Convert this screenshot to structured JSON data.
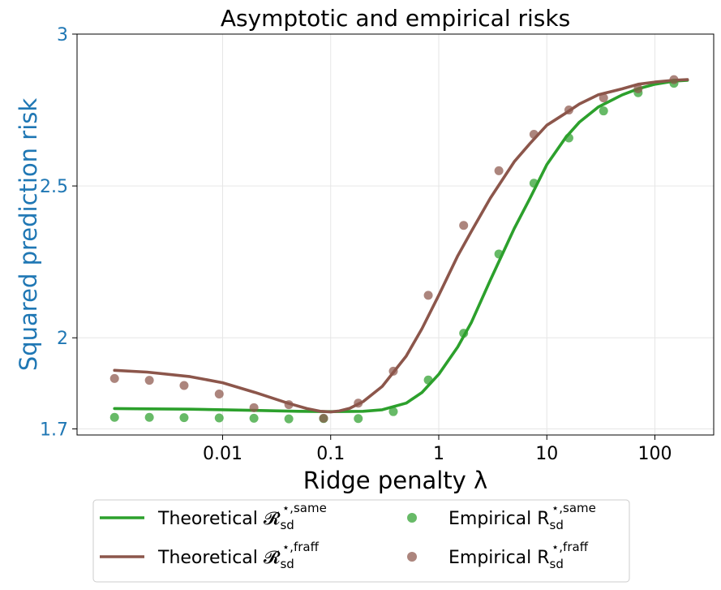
{
  "chart_data": {
    "type": "line",
    "title": "Asymptotic and empirical risks",
    "xlabel": "Ridge penalty λ",
    "ylabel": "Squared prediction risk",
    "xscale": "log",
    "xlim": [
      0.00045,
      350
    ],
    "ylim": [
      1.68,
      3.0
    ],
    "xticks": [
      0.01,
      0.1,
      1,
      10,
      100
    ],
    "xtick_labels": [
      "0.01",
      "0.1",
      "1",
      "10",
      "100"
    ],
    "yticks": [
      1.7,
      2,
      2.5,
      3
    ],
    "ytick_labels": [
      "1.7",
      "2",
      "2.5",
      "3"
    ],
    "grid": true,
    "legend_position": "below",
    "series": [
      {
        "name": "theo_same",
        "kind": "line",
        "label_prefix": "Theoretical ",
        "label_glyph": "𝓡",
        "label_sub": "sd",
        "label_sup": "⋆,same",
        "color": "#2ca02c",
        "x": [
          0.001,
          0.002,
          0.005,
          0.01,
          0.02,
          0.05,
          0.1,
          0.2,
          0.3,
          0.5,
          0.7,
          1,
          1.5,
          2,
          3,
          5,
          7,
          10,
          15,
          20,
          30,
          50,
          70,
          100,
          150,
          200
        ],
        "y": [
          1.767,
          1.766,
          1.765,
          1.763,
          1.761,
          1.758,
          1.757,
          1.758,
          1.763,
          1.785,
          1.82,
          1.88,
          1.97,
          2.05,
          2.19,
          2.36,
          2.46,
          2.57,
          2.66,
          2.71,
          2.76,
          2.8,
          2.82,
          2.835,
          2.845,
          2.848
        ]
      },
      {
        "name": "theo_fraff",
        "kind": "line",
        "label_prefix": "Theoretical ",
        "label_glyph": "𝓡",
        "label_sub": "sd",
        "label_sup": "⋆,fraff",
        "color": "#8c564b",
        "x": [
          0.001,
          0.002,
          0.005,
          0.01,
          0.02,
          0.04,
          0.06,
          0.08,
          0.1,
          0.12,
          0.15,
          0.2,
          0.3,
          0.5,
          0.7,
          1,
          1.5,
          2,
          3,
          5,
          7,
          10,
          15,
          20,
          30,
          50,
          70,
          100,
          150,
          200
        ],
        "y": [
          1.893,
          1.887,
          1.872,
          1.852,
          1.82,
          1.785,
          1.767,
          1.758,
          1.756,
          1.759,
          1.768,
          1.79,
          1.84,
          1.94,
          2.03,
          2.14,
          2.27,
          2.35,
          2.46,
          2.58,
          2.64,
          2.7,
          2.74,
          2.77,
          2.8,
          2.82,
          2.835,
          2.842,
          2.848,
          2.85
        ]
      },
      {
        "name": "emp_same",
        "kind": "scatter",
        "label_prefix": "Empirical ",
        "label_glyph": "R",
        "label_sub": "sd",
        "label_sup": "⋆,same",
        "color": "#2ca02c",
        "x": [
          0.001,
          0.0021,
          0.0044,
          0.0093,
          0.0195,
          0.041,
          0.086,
          0.18,
          0.38,
          0.8,
          1.7,
          3.6,
          7.6,
          16,
          33.5,
          70,
          150
        ],
        "y": [
          1.738,
          1.738,
          1.737,
          1.736,
          1.735,
          1.733,
          1.734,
          1.734,
          1.757,
          1.861,
          2.015,
          2.276,
          2.509,
          2.658,
          2.747,
          2.807,
          2.838
        ]
      },
      {
        "name": "emp_fraff",
        "kind": "scatter",
        "label_prefix": "Empirical ",
        "label_glyph": "R",
        "label_sub": "sd",
        "label_sup": "⋆,fraff",
        "color": "#8c564b",
        "x": [
          0.001,
          0.0021,
          0.0044,
          0.0093,
          0.0195,
          0.041,
          0.086,
          0.18,
          0.38,
          0.8,
          1.7,
          3.6,
          7.6,
          16,
          33.5,
          70,
          150
        ],
        "y": [
          1.866,
          1.86,
          1.843,
          1.815,
          1.77,
          1.78,
          1.735,
          1.785,
          1.89,
          2.14,
          2.37,
          2.55,
          2.67,
          2.75,
          2.79,
          2.82,
          2.85
        ]
      }
    ]
  }
}
